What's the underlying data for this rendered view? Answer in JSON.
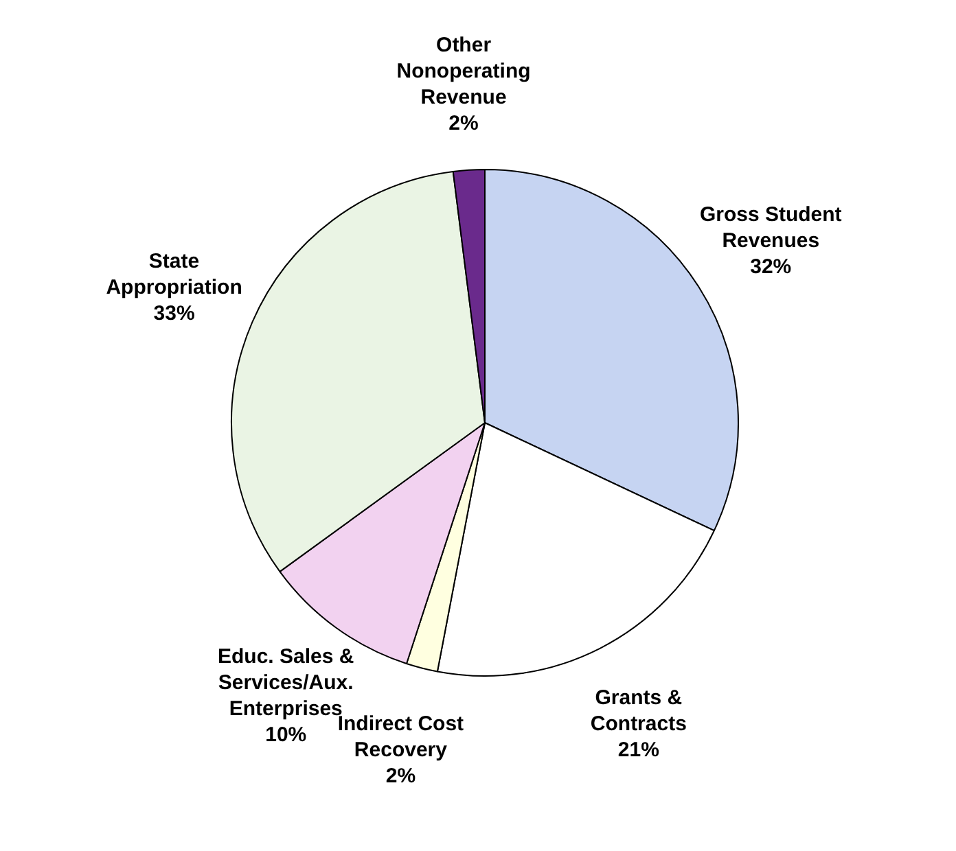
{
  "chart_data": {
    "type": "pie",
    "categories": [
      "Gross Student Revenues",
      "Grants & Contracts",
      "Indirect Cost Recovery",
      "Educ. Sales & Services/Aux. Enterprises",
      "State Appropriation",
      "Other Nonoperating Revenue"
    ],
    "values": [
      32,
      21,
      2,
      10,
      33,
      2
    ],
    "value_labels": [
      "32%",
      "21%",
      "2%",
      "10%",
      "33%",
      "2%"
    ],
    "colors": [
      "#c6d4f2",
      "#ffffff",
      "#ffffe0",
      "#f2d2f0",
      "#eaf4e4",
      "#6a2a8c"
    ],
    "legend": false
  }
}
